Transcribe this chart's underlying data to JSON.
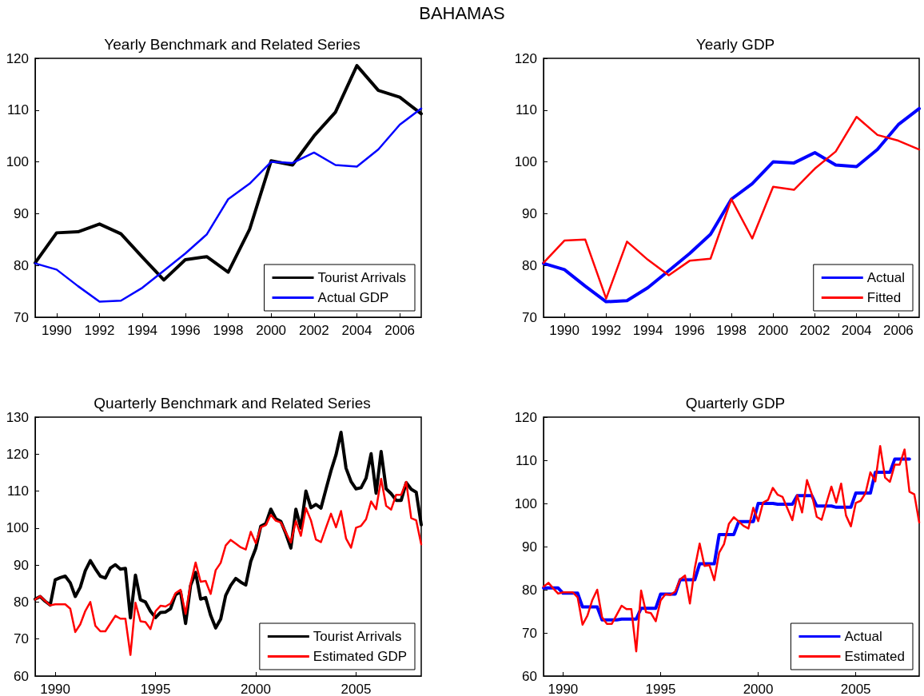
{
  "chart_data": [
    {
      "type": "line",
      "title": "Yearly Benchmark and Related Series",
      "annotations": [
        "BAHAMAS"
      ],
      "x": [
        1989,
        1990,
        1991,
        1992,
        1993,
        1994,
        1995,
        1996,
        1997,
        1998,
        1999,
        2000,
        2001,
        2002,
        2003,
        2004,
        2005,
        2006,
        2007
      ],
      "series": [
        {
          "name": "Tourist Arrivals",
          "color": "#000000",
          "values": [
            80.5,
            86.3,
            86.5,
            88,
            86.1,
            81.6,
            77.2,
            81.1,
            81.7,
            78.7,
            87,
            100.2,
            99.4,
            105,
            109.6,
            118.6,
            113.8,
            112.5,
            109.3
          ]
        },
        {
          "name": "Actual GDP",
          "color": "#0000ff",
          "values": [
            80.4,
            79.2,
            76,
            73,
            73.2,
            75.7,
            79,
            82.3,
            86,
            92.8,
            95.8,
            100,
            99.8,
            101.8,
            99.4,
            99.1,
            102.4,
            107.2,
            110.3
          ]
        }
      ],
      "xlim": [
        1989,
        2007
      ],
      "xticks": [
        1990,
        1992,
        1994,
        1996,
        1998,
        2000,
        2002,
        2004,
        2006
      ],
      "ylim": [
        70,
        120
      ],
      "yticks": [
        70,
        80,
        90,
        100,
        110,
        120
      ],
      "grid": false,
      "legend": "bottom right",
      "line_style": "solid"
    },
    {
      "type": "line",
      "title": "Yearly GDP",
      "x": [
        1989,
        1990,
        1991,
        1992,
        1993,
        1994,
        1995,
        1996,
        1997,
        1998,
        1999,
        2000,
        2001,
        2002,
        2003,
        2004,
        2005,
        2006,
        2007
      ],
      "series": [
        {
          "name": "Actual",
          "color": "#0000ff",
          "values": [
            80.4,
            79.2,
            76,
            73,
            73.2,
            75.7,
            79,
            82.3,
            86,
            92.8,
            95.8,
            100,
            99.8,
            101.8,
            99.4,
            99.1,
            102.4,
            107.2,
            110.3
          ]
        },
        {
          "name": "Fitted",
          "color": "#ff0000",
          "values": [
            80.5,
            84.8,
            85,
            73.6,
            84.6,
            81.1,
            78.1,
            80.9,
            81.3,
            92.8,
            85.2,
            95.2,
            94.6,
            98.7,
            102,
            108.7,
            105.2,
            104.1,
            102.4
          ]
        }
      ],
      "xlim": [
        1989,
        2007
      ],
      "xticks": [
        1990,
        1992,
        1994,
        1996,
        1998,
        2000,
        2002,
        2004,
        2006
      ],
      "ylim": [
        70,
        120
      ],
      "yticks": [
        70,
        80,
        90,
        100,
        110,
        120
      ],
      "grid": false,
      "legend": "bottom right",
      "line_style": "solid"
    },
    {
      "type": "line",
      "title": "Quarterly Benchmark and Related Series",
      "x": [
        1989,
        1989.25,
        1989.5,
        1989.75,
        1990,
        1990.25,
        1990.5,
        1990.75,
        1991,
        1991.25,
        1991.5,
        1991.75,
        1992,
        1992.25,
        1992.5,
        1992.75,
        1993,
        1993.25,
        1993.5,
        1993.75,
        1994,
        1994.25,
        1994.5,
        1994.75,
        1995,
        1995.25,
        1995.5,
        1995.75,
        1996,
        1996.25,
        1996.5,
        1996.75,
        1997,
        1997.25,
        1997.5,
        1997.75,
        1998,
        1998.25,
        1998.5,
        1998.75,
        1999,
        1999.25,
        1999.5,
        1999.75,
        2000,
        2000.25,
        2000.5,
        2000.75,
        2001,
        2001.25,
        2001.5,
        2001.75,
        2002,
        2002.25,
        2002.5,
        2002.75,
        2003,
        2003.25,
        2003.5,
        2003.75,
        2004,
        2004.25,
        2004.5,
        2004.75,
        2005,
        2005.25,
        2005.5,
        2005.75,
        2006,
        2006.25,
        2006.5,
        2006.75,
        2007,
        2007.25,
        2007.5,
        2007.75,
        2008,
        2008.25
      ],
      "series": [
        {
          "name": "Tourist Arrivals",
          "color": "#000000",
          "values": [
            80.8,
            81.5,
            80.2,
            79.2,
            86,
            86.6,
            87,
            85.2,
            81.5,
            84,
            88.5,
            91.2,
            89,
            87,
            86.5,
            89.2,
            90.1,
            88.9,
            89.1,
            75.7,
            87.3,
            80.6,
            80,
            77.5,
            75.8,
            77.2,
            77.3,
            78.2,
            82,
            82.8,
            74.2,
            84.5,
            88,
            80.8,
            81.2,
            76.4,
            73,
            75.4,
            81.8,
            84.5,
            86.4,
            85.4,
            84.6,
            91,
            94.5,
            100.5,
            101.2,
            105.1,
            102.5,
            101.8,
            98.5,
            94.6,
            105.1,
            100,
            110,
            105.5,
            106.4,
            105.4,
            110.5,
            115.5,
            119.8,
            125.9,
            116.2,
            112.6,
            110.6,
            110.9,
            113.5,
            120.1,
            109.4,
            120.7,
            110.6,
            109.3,
            107.5,
            107.5,
            112.3,
            110.5,
            109.7,
            100.9
          ]
        },
        {
          "name": "Estimated GDP",
          "color": "#ff0000",
          "values": [
            80.7,
            81.6,
            80.3,
            79.1,
            79.4,
            79.4,
            79.4,
            78.2,
            71.9,
            74,
            77.6,
            80,
            73.6,
            72.1,
            72.1,
            74.2,
            76.3,
            75.5,
            75.5,
            65.7,
            79.8,
            74.8,
            74.6,
            72.7,
            77.5,
            79,
            78.8,
            79.6,
            82.4,
            83.3,
            76.8,
            85,
            90.7,
            85.5,
            85.7,
            82.2,
            88.6,
            90.6,
            95.3,
            96.8,
            95.8,
            94.8,
            94.2,
            99,
            95.9,
            100.2,
            100.8,
            103.6,
            102,
            101.5,
            98.8,
            96.1,
            101.9,
            97.9,
            105.4,
            102.1,
            96.9,
            96.2,
            100.1,
            103.9,
            100.2,
            104.6,
            97.2,
            94.7,
            100.1,
            100.6,
            102.4,
            107.2,
            105.1,
            113.3,
            106,
            105,
            109,
            109,
            112.5,
            102.7,
            102.1,
            95.6
          ]
        }
      ],
      "xlim": [
        1989,
        2008.25
      ],
      "xticks": [
        1990,
        1995,
        2000,
        2005
      ],
      "ylim": [
        60,
        130
      ],
      "yticks": [
        60,
        70,
        80,
        90,
        100,
        110,
        120,
        130
      ],
      "grid": false,
      "legend": "bottom right",
      "line_style": "solid"
    },
    {
      "type": "line",
      "title": "Quarterly GDP",
      "x": [
        1989,
        1989.25,
        1989.5,
        1989.75,
        1990,
        1990.25,
        1990.5,
        1990.75,
        1991,
        1991.25,
        1991.5,
        1991.75,
        1992,
        1992.25,
        1992.5,
        1992.75,
        1993,
        1993.25,
        1993.5,
        1993.75,
        1994,
        1994.25,
        1994.5,
        1994.75,
        1995,
        1995.25,
        1995.5,
        1995.75,
        1996,
        1996.25,
        1996.5,
        1996.75,
        1997,
        1997.25,
        1997.5,
        1997.75,
        1998,
        1998.25,
        1998.5,
        1998.75,
        1999,
        1999.25,
        1999.5,
        1999.75,
        2000,
        2000.25,
        2000.5,
        2000.75,
        2001,
        2001.25,
        2001.5,
        2001.75,
        2002,
        2002.25,
        2002.5,
        2002.75,
        2003,
        2003.25,
        2003.5,
        2003.75,
        2004,
        2004.25,
        2004.5,
        2004.75,
        2005,
        2005.25,
        2005.5,
        2005.75,
        2006,
        2006.25,
        2006.5,
        2006.75,
        2007,
        2007.25,
        2007.5,
        2007.75,
        2008,
        2008.25
      ],
      "series": [
        {
          "name": "Actual",
          "color": "#0000ff",
          "values": [
            80.4,
            80.4,
            80.4,
            80.4,
            79.2,
            79.2,
            79.2,
            79.2,
            76,
            76,
            76,
            76,
            73,
            73,
            73,
            73,
            73.2,
            73.2,
            73.2,
            73.2,
            75.7,
            75.7,
            75.7,
            75.7,
            79,
            79,
            79,
            79,
            82.3,
            82.3,
            82.3,
            82.3,
            86,
            86,
            86,
            86,
            92.8,
            92.8,
            92.8,
            92.8,
            95.8,
            95.8,
            95.8,
            95.8,
            100,
            100,
            100,
            100,
            99.8,
            99.8,
            99.8,
            99.8,
            101.8,
            101.8,
            101.8,
            101.8,
            99.4,
            99.4,
            99.4,
            99.4,
            99.1,
            99.1,
            99.1,
            99.1,
            102.4,
            102.4,
            102.4,
            102.4,
            107.2,
            107.2,
            107.2,
            107.2,
            110.3,
            110.3,
            110.3,
            110.3,
            null,
            null
          ]
        },
        {
          "name": "Estimated",
          "color": "#ff0000",
          "values": [
            80.7,
            81.6,
            80.3,
            79.1,
            79.4,
            79.4,
            79.4,
            78.2,
            71.9,
            74,
            77.6,
            80,
            73.6,
            72.1,
            72.1,
            74.2,
            76.3,
            75.5,
            75.5,
            65.7,
            79.8,
            74.8,
            74.6,
            72.7,
            77.5,
            79,
            78.8,
            79.6,
            82.4,
            83.3,
            76.8,
            85,
            90.7,
            85.5,
            85.7,
            82.2,
            88.6,
            90.6,
            95.3,
            96.8,
            95.8,
            94.8,
            94.2,
            99,
            95.9,
            100.2,
            100.8,
            103.6,
            102,
            101.5,
            98.8,
            96.1,
            101.9,
            97.9,
            105.4,
            102.1,
            96.9,
            96.2,
            100.1,
            103.9,
            100.2,
            104.6,
            97.2,
            94.7,
            100.1,
            100.6,
            102.4,
            107.2,
            105.1,
            113.3,
            106,
            105,
            109,
            109,
            112.5,
            102.7,
            102.1,
            95.6
          ]
        }
      ],
      "xlim": [
        1989,
        2008.25
      ],
      "xticks": [
        1990,
        1995,
        2000,
        2005
      ],
      "ylim": [
        60,
        120
      ],
      "yticks": [
        60,
        70,
        80,
        90,
        100,
        110,
        120
      ],
      "grid": false,
      "legend": "bottom right",
      "line_style": "solid"
    }
  ]
}
